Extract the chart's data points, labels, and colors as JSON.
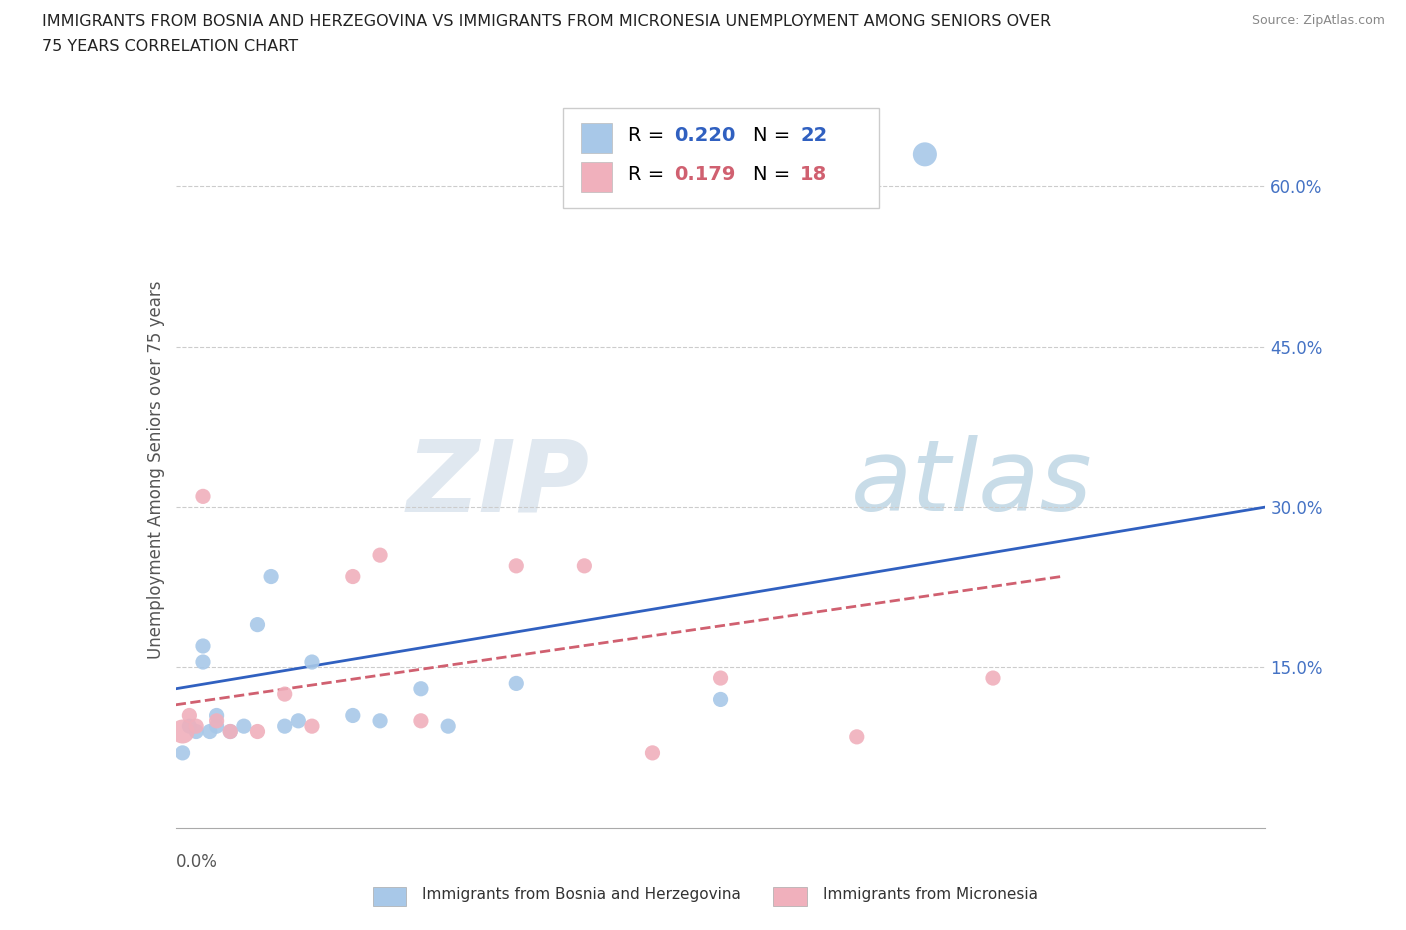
{
  "title_line1": "IMMIGRANTS FROM BOSNIA AND HERZEGOVINA VS IMMIGRANTS FROM MICRONESIA UNEMPLOYMENT AMONG SENIORS OVER",
  "title_line2": "75 YEARS CORRELATION CHART",
  "source": "Source: ZipAtlas.com",
  "ylabel": "Unemployment Among Seniors over 75 years",
  "xlim": [
    0.0,
    0.08
  ],
  "ylim": [
    0.0,
    0.67
  ],
  "y_ticks": [
    0.0,
    0.15,
    0.3,
    0.45,
    0.6
  ],
  "y_tick_labels": [
    "",
    "15.0%",
    "30.0%",
    "45.0%",
    "60.0%"
  ],
  "legend_R1": "0.220",
  "legend_N1": "22",
  "legend_R2": "0.179",
  "legend_N2": "18",
  "color_blue": "#a8c8e8",
  "color_pink": "#f0b0bc",
  "trendline_blue": "#3060c0",
  "trendline_pink": "#d06070",
  "background_color": "#ffffff",
  "grid_color": "#cccccc",
  "bosnia_x": [
    0.0005,
    0.001,
    0.0015,
    0.002,
    0.002,
    0.0025,
    0.003,
    0.003,
    0.004,
    0.005,
    0.006,
    0.007,
    0.008,
    0.009,
    0.01,
    0.013,
    0.015,
    0.018,
    0.02,
    0.025,
    0.04,
    0.055
  ],
  "bosnia_y": [
    0.07,
    0.095,
    0.09,
    0.17,
    0.155,
    0.09,
    0.105,
    0.095,
    0.09,
    0.095,
    0.19,
    0.235,
    0.095,
    0.1,
    0.155,
    0.105,
    0.1,
    0.13,
    0.095,
    0.135,
    0.12,
    0.63
  ],
  "micronesia_x": [
    0.0005,
    0.001,
    0.0015,
    0.002,
    0.003,
    0.004,
    0.006,
    0.008,
    0.01,
    0.013,
    0.015,
    0.018,
    0.025,
    0.03,
    0.035,
    0.04,
    0.05,
    0.06
  ],
  "micronesia_y": [
    0.09,
    0.105,
    0.095,
    0.31,
    0.1,
    0.09,
    0.09,
    0.125,
    0.095,
    0.235,
    0.255,
    0.1,
    0.245,
    0.245,
    0.07,
    0.14,
    0.085,
    0.14
  ],
  "bosnia_marker_size_scale": [
    1.0,
    1.0,
    1.0,
    1.0,
    1.0,
    1.0,
    1.0,
    1.0,
    1.0,
    1.0,
    1.0,
    1.0,
    1.0,
    1.0,
    1.0,
    1.0,
    1.0,
    1.0,
    1.0,
    1.0,
    1.0,
    2.5
  ],
  "micronesia_marker_size_scale": [
    2.5,
    1.0,
    1.0,
    1.0,
    1.0,
    1.0,
    1.0,
    1.0,
    1.0,
    1.0,
    1.0,
    1.0,
    1.0,
    1.0,
    1.0,
    1.0,
    1.0,
    1.0
  ]
}
